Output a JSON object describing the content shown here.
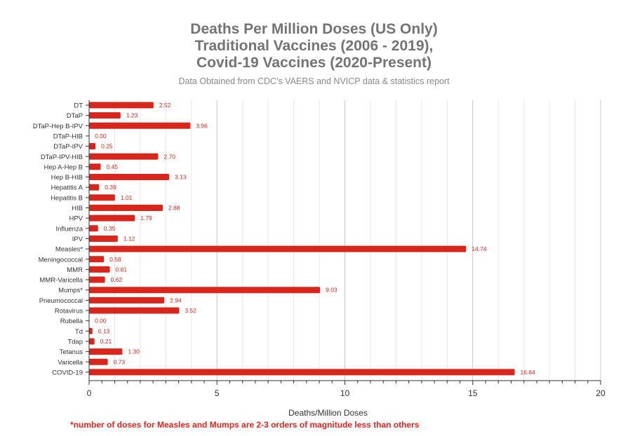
{
  "chart_data": {
    "type": "bar",
    "orientation": "horizontal",
    "title_lines": [
      "Deaths Per Million Doses (US Only)",
      "Traditional Vaccines (2006 - 2019),",
      "Covid-19 Vaccines (2020-Present)"
    ],
    "subtitle": "Data Obtained from CDC's VAERS and NVICP data & statistics report",
    "xlabel": "Deaths/Million Doses",
    "footnote": "*number of doses for Measles and Mumps are 2-3 orders of magnitude less than others",
    "xlim": [
      0,
      20
    ],
    "xticks": [
      0,
      5,
      10,
      15,
      20
    ],
    "grid": true,
    "bar_color": "#d9261c",
    "value_label_color": "#d9261c",
    "categories": [
      "DT",
      "DTaP",
      "DTaP-Hep B-IPV",
      "DTaP-HIB",
      "DTaP-IPV",
      "DTaP-IPV-HIB",
      "Hep A-Hep B",
      "Hep B-HIB",
      "Hepatitis A",
      "Hepatitis B",
      "HIB",
      "HPV",
      "Influenza",
      "IPV",
      "Measles*",
      "Meningococcal",
      "MMR",
      "MMR-Varicella",
      "Mumps*",
      "Pneumococcal",
      "Rotavirus",
      "Rubella",
      "Td",
      "Tdap",
      "Tetanus",
      "Varicella",
      "COVID-19"
    ],
    "values": [
      2.52,
      1.23,
      3.96,
      0.0,
      0.25,
      2.7,
      0.45,
      3.13,
      0.39,
      1.01,
      2.88,
      1.79,
      0.35,
      1.12,
      14.74,
      0.58,
      0.81,
      0.62,
      9.03,
      2.94,
      3.52,
      0.0,
      0.13,
      0.21,
      1.3,
      0.73,
      16.64
    ],
    "value_labels": [
      "2.52",
      "1.23",
      "3.96",
      "0.00",
      "0.25",
      "2.70",
      "0.45",
      "3.13",
      "0.39",
      "1.01",
      "2.88",
      "1.79",
      "0.35",
      "1.12",
      "14.74",
      "0.58",
      "0.81",
      "0.62",
      "9.03",
      "2.94",
      "3.52",
      "0.00",
      "0.13",
      "0.21",
      "1.30",
      "0.73",
      "16.64"
    ]
  }
}
